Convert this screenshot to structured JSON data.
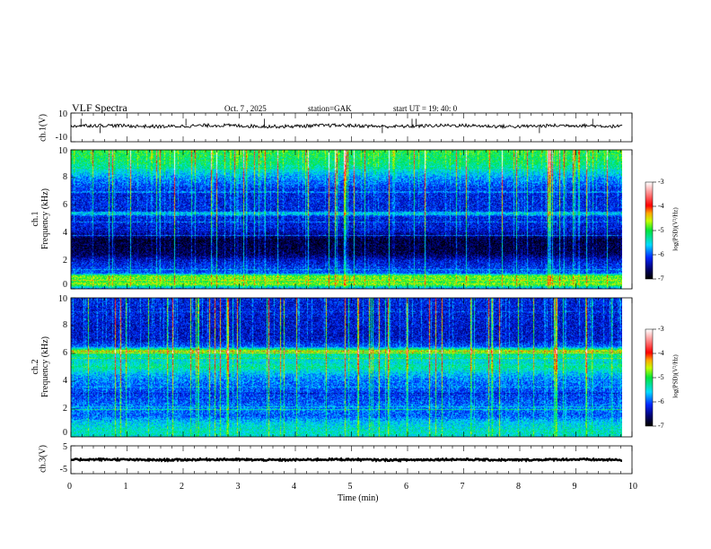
{
  "header": {
    "title": "VLF  Spectra",
    "date": "Oct. 7  , 2025",
    "station": "station=GAK",
    "start": "start  UT =   19: 40: 0"
  },
  "chart_data": [
    {
      "type": "line",
      "name": "ch1-waveform",
      "ylabel": "ch.1(V)",
      "ylim": [
        -10,
        10
      ],
      "yticks": [
        "10",
        "-10"
      ],
      "baseline": 1,
      "noise": 1.2,
      "spikes": [
        0.18,
        0.52,
        2.05,
        3.45,
        5.55,
        6.08,
        6.15,
        8.35,
        9.3
      ]
    },
    {
      "type": "heatmap",
      "name": "ch1-spectrogram",
      "ylabel": [
        "ch.1",
        "Frequency  (kHz)"
      ],
      "ylim": [
        0,
        10
      ],
      "yticks": [
        "0",
        "2",
        "4",
        "6",
        "8",
        "10"
      ],
      "profile_khz": [
        0,
        0.3,
        0.5,
        0.9,
        1.1,
        2,
        2.5,
        3.5,
        4.2,
        5.2,
        5.4,
        5.6,
        7,
        8,
        9,
        10
      ],
      "profile_logpsd": [
        -5.8,
        -4.7,
        -4.9,
        -4.8,
        -6.0,
        -6.3,
        -6.7,
        -6.8,
        -6.3,
        -6.2,
        -5.5,
        -6.2,
        -6.2,
        -5.8,
        -5.2,
        -5.0
      ],
      "colorbar": {
        "range": [
          -7,
          -3
        ],
        "ticks": [
          "-3",
          "-4",
          "-5",
          "-6",
          "-7"
        ],
        "label": "log(PSD)(V²/Hz)"
      }
    },
    {
      "type": "heatmap",
      "name": "ch2-spectrogram",
      "ylabel": [
        "ch.2",
        "Frequency  (kHz)"
      ],
      "ylim": [
        0,
        10
      ],
      "yticks": [
        "0",
        "2",
        "4",
        "6",
        "8",
        "10"
      ],
      "profile_khz": [
        0,
        0.3,
        1,
        1.5,
        2,
        3,
        4,
        4.5,
        5,
        5.5,
        6,
        6.2,
        6.5,
        7,
        8,
        10
      ],
      "profile_logpsd": [
        -5.5,
        -5.4,
        -5.6,
        -6.0,
        -5.9,
        -6.1,
        -5.9,
        -5.7,
        -5.3,
        -5.5,
        -5.2,
        -4.7,
        -6.0,
        -6.3,
        -6.3,
        -6.2
      ],
      "colorbar": {
        "range": [
          -7,
          -3
        ],
        "ticks": [
          "-3",
          "-4",
          "-5",
          "-6",
          "-7"
        ],
        "label": "log(PSD)(V²/Hz)"
      }
    },
    {
      "type": "line",
      "name": "ch3-waveform",
      "ylabel": "ch.3(V)",
      "ylim": [
        -5,
        5
      ],
      "yticks": [
        "5",
        "-5"
      ],
      "baseline": 0,
      "noise": 0.3,
      "spikes": []
    }
  ],
  "xaxis": {
    "label": "Time  (min)",
    "range": [
      0,
      10
    ],
    "ticks": [
      "0",
      "1",
      "2",
      "3",
      "4",
      "5",
      "6",
      "7",
      "8",
      "9",
      "10"
    ],
    "data_end": 9.83
  }
}
